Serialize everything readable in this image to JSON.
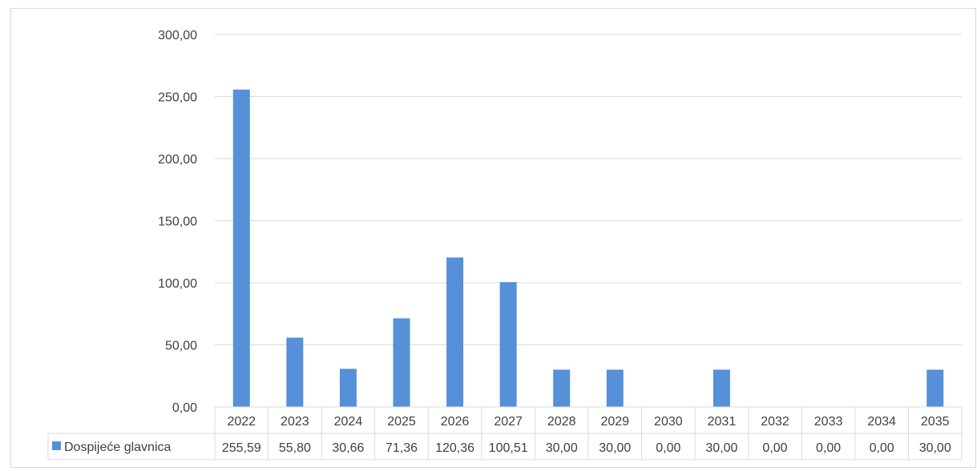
{
  "chart_data": {
    "type": "bar",
    "categories": [
      "2022",
      "2023",
      "2024",
      "2025",
      "2026",
      "2027",
      "2028",
      "2029",
      "2030",
      "2031",
      "2032",
      "2033",
      "2034",
      "2035"
    ],
    "series": [
      {
        "name": "Dospijeće glavnica",
        "values": [
          255.59,
          55.8,
          30.66,
          71.36,
          120.36,
          100.51,
          30.0,
          30.0,
          0.0,
          30.0,
          0.0,
          0.0,
          0.0,
          30.0
        ],
        "labels": [
          "255,59",
          "55,80",
          "30,66",
          "71,36",
          "120,36",
          "100,51",
          "30,00",
          "30,00",
          "0,00",
          "30,00",
          "0,00",
          "0,00",
          "0,00",
          "30,00"
        ],
        "color": "#5590d9"
      }
    ],
    "ylim": [
      0,
      300
    ],
    "yticks": [
      0,
      50,
      100,
      150,
      200,
      250,
      300
    ],
    "ytick_labels": [
      "0,00",
      "50,00",
      "100,00",
      "150,00",
      "200,00",
      "250,00",
      "300,00"
    ],
    "grid": true,
    "data_table": true,
    "colors": {
      "grid": "#d9d9d9",
      "text": "#404040",
      "bar": "#5590d9"
    }
  }
}
